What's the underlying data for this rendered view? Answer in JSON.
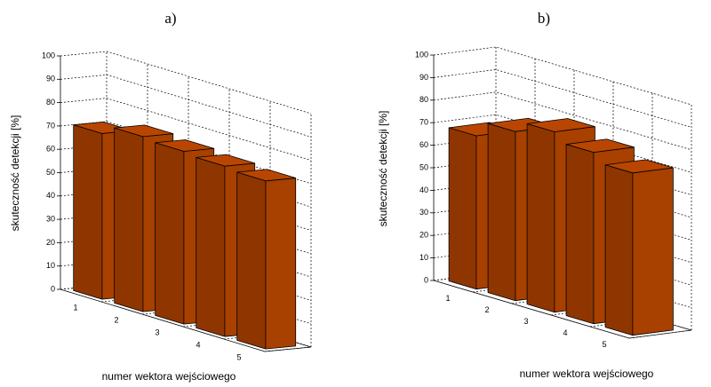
{
  "chart_data": [
    {
      "type": "bar3d",
      "title": "a)",
      "xlabel": "numer wektora wejściowego",
      "ylabel": "skuteczność detekcji [%]",
      "categories": [
        "1",
        "2",
        "3",
        "4",
        "5"
      ],
      "values": [
        71,
        75,
        74,
        73,
        72
      ],
      "color": "#a84000",
      "ylim": [
        0,
        100
      ],
      "yticks": [
        0,
        10,
        20,
        30,
        40,
        50,
        60,
        70,
        80,
        90,
        100
      ],
      "grid": true
    },
    {
      "type": "bar3d",
      "title": "b)",
      "xlabel": "numer wektora wejściowego",
      "ylabel": "skuteczność detekcji [%]",
      "categories": [
        "1",
        "2",
        "3",
        "4",
        "5"
      ],
      "values": [
        68,
        75,
        80,
        76,
        72
      ],
      "color": "#a84000",
      "ylim": [
        0,
        100
      ],
      "yticks": [
        0,
        10,
        20,
        30,
        40,
        50,
        60,
        70,
        80,
        90,
        100
      ],
      "grid": true
    }
  ]
}
